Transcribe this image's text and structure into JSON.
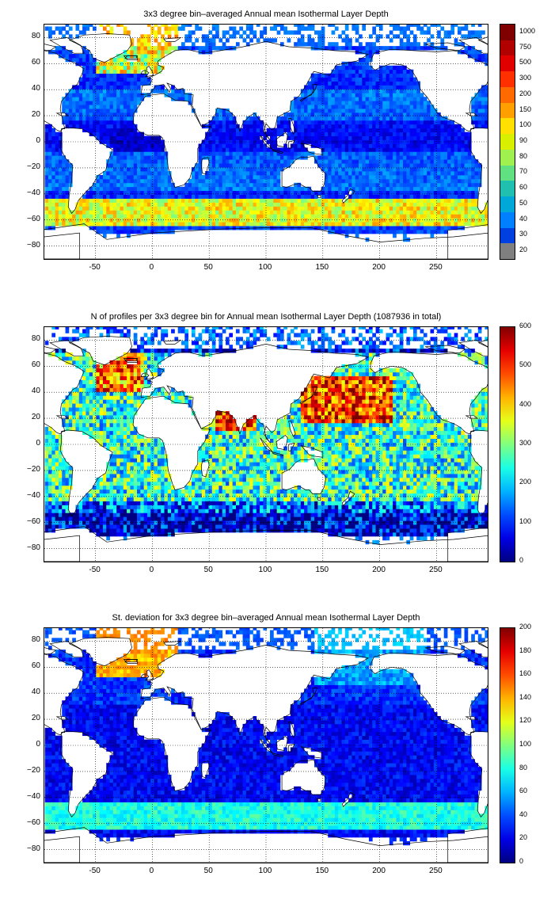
{
  "chart_data": [
    {
      "type": "heatmap",
      "title": "3x3 degree bin–averaged Annual mean Isothermal Layer Depth",
      "xlim": [
        -95,
        295
      ],
      "ylim": [
        -90,
        90
      ],
      "xticks": [
        "-50",
        "0",
        "50",
        "100",
        "150",
        "200",
        "250"
      ],
      "yticks": [
        "80",
        "60",
        "40",
        "20",
        "0",
        "−20",
        "−40",
        "−60",
        "−80"
      ],
      "colorbar": {
        "scale": "categorical",
        "labels": [
          "1000",
          "750",
          "500",
          "300",
          "200",
          "150",
          "100",
          "90",
          "80",
          "70",
          "60",
          "50",
          "40",
          "30",
          "20"
        ],
        "colors": [
          "#800000",
          "#b00000",
          "#e00000",
          "#ff3000",
          "#ff6a00",
          "#ffa000",
          "#ffe000",
          "#d8f000",
          "#a0f050",
          "#60e080",
          "#20c0b0",
          "#00a8d8",
          "#0080ff",
          "#0040e0",
          "#808080"
        ]
      },
      "grid": true,
      "pattern": "mean"
    },
    {
      "type": "heatmap",
      "title": "N of profiles per 3x3 degree bin for Annual mean Isothermal Layer Depth  (1087936 in total)",
      "xlim": [
        -95,
        295
      ],
      "ylim": [
        -90,
        90
      ],
      "xticks": [
        "-50",
        "0",
        "50",
        "100",
        "150",
        "200",
        "250"
      ],
      "yticks": [
        "80",
        "60",
        "40",
        "20",
        "0",
        "−20",
        "−40",
        "−60",
        "−80"
      ],
      "colorbar": {
        "scale": "linear",
        "min": 0,
        "max": 600,
        "labels": [
          "600",
          "500",
          "400",
          "300",
          "200",
          "100",
          "0"
        ]
      },
      "grid": true,
      "pattern": "count"
    },
    {
      "type": "heatmap",
      "title": "St. deviation for 3x3 degree bin–averaged Annual mean Isothermal Layer Depth",
      "xlim": [
        -95,
        295
      ],
      "ylim": [
        -90,
        90
      ],
      "xticks": [
        "-50",
        "0",
        "50",
        "100",
        "150",
        "200",
        "250"
      ],
      "yticks": [
        "80",
        "60",
        "40",
        "20",
        "0",
        "−20",
        "−40",
        "−60",
        "−80"
      ],
      "colorbar": {
        "scale": "linear",
        "min": 0,
        "max": 200,
        "labels": [
          "200",
          "180",
          "160",
          "140",
          "120",
          "100",
          "80",
          "60",
          "40",
          "20",
          "0"
        ]
      },
      "grid": true,
      "pattern": "std"
    }
  ]
}
